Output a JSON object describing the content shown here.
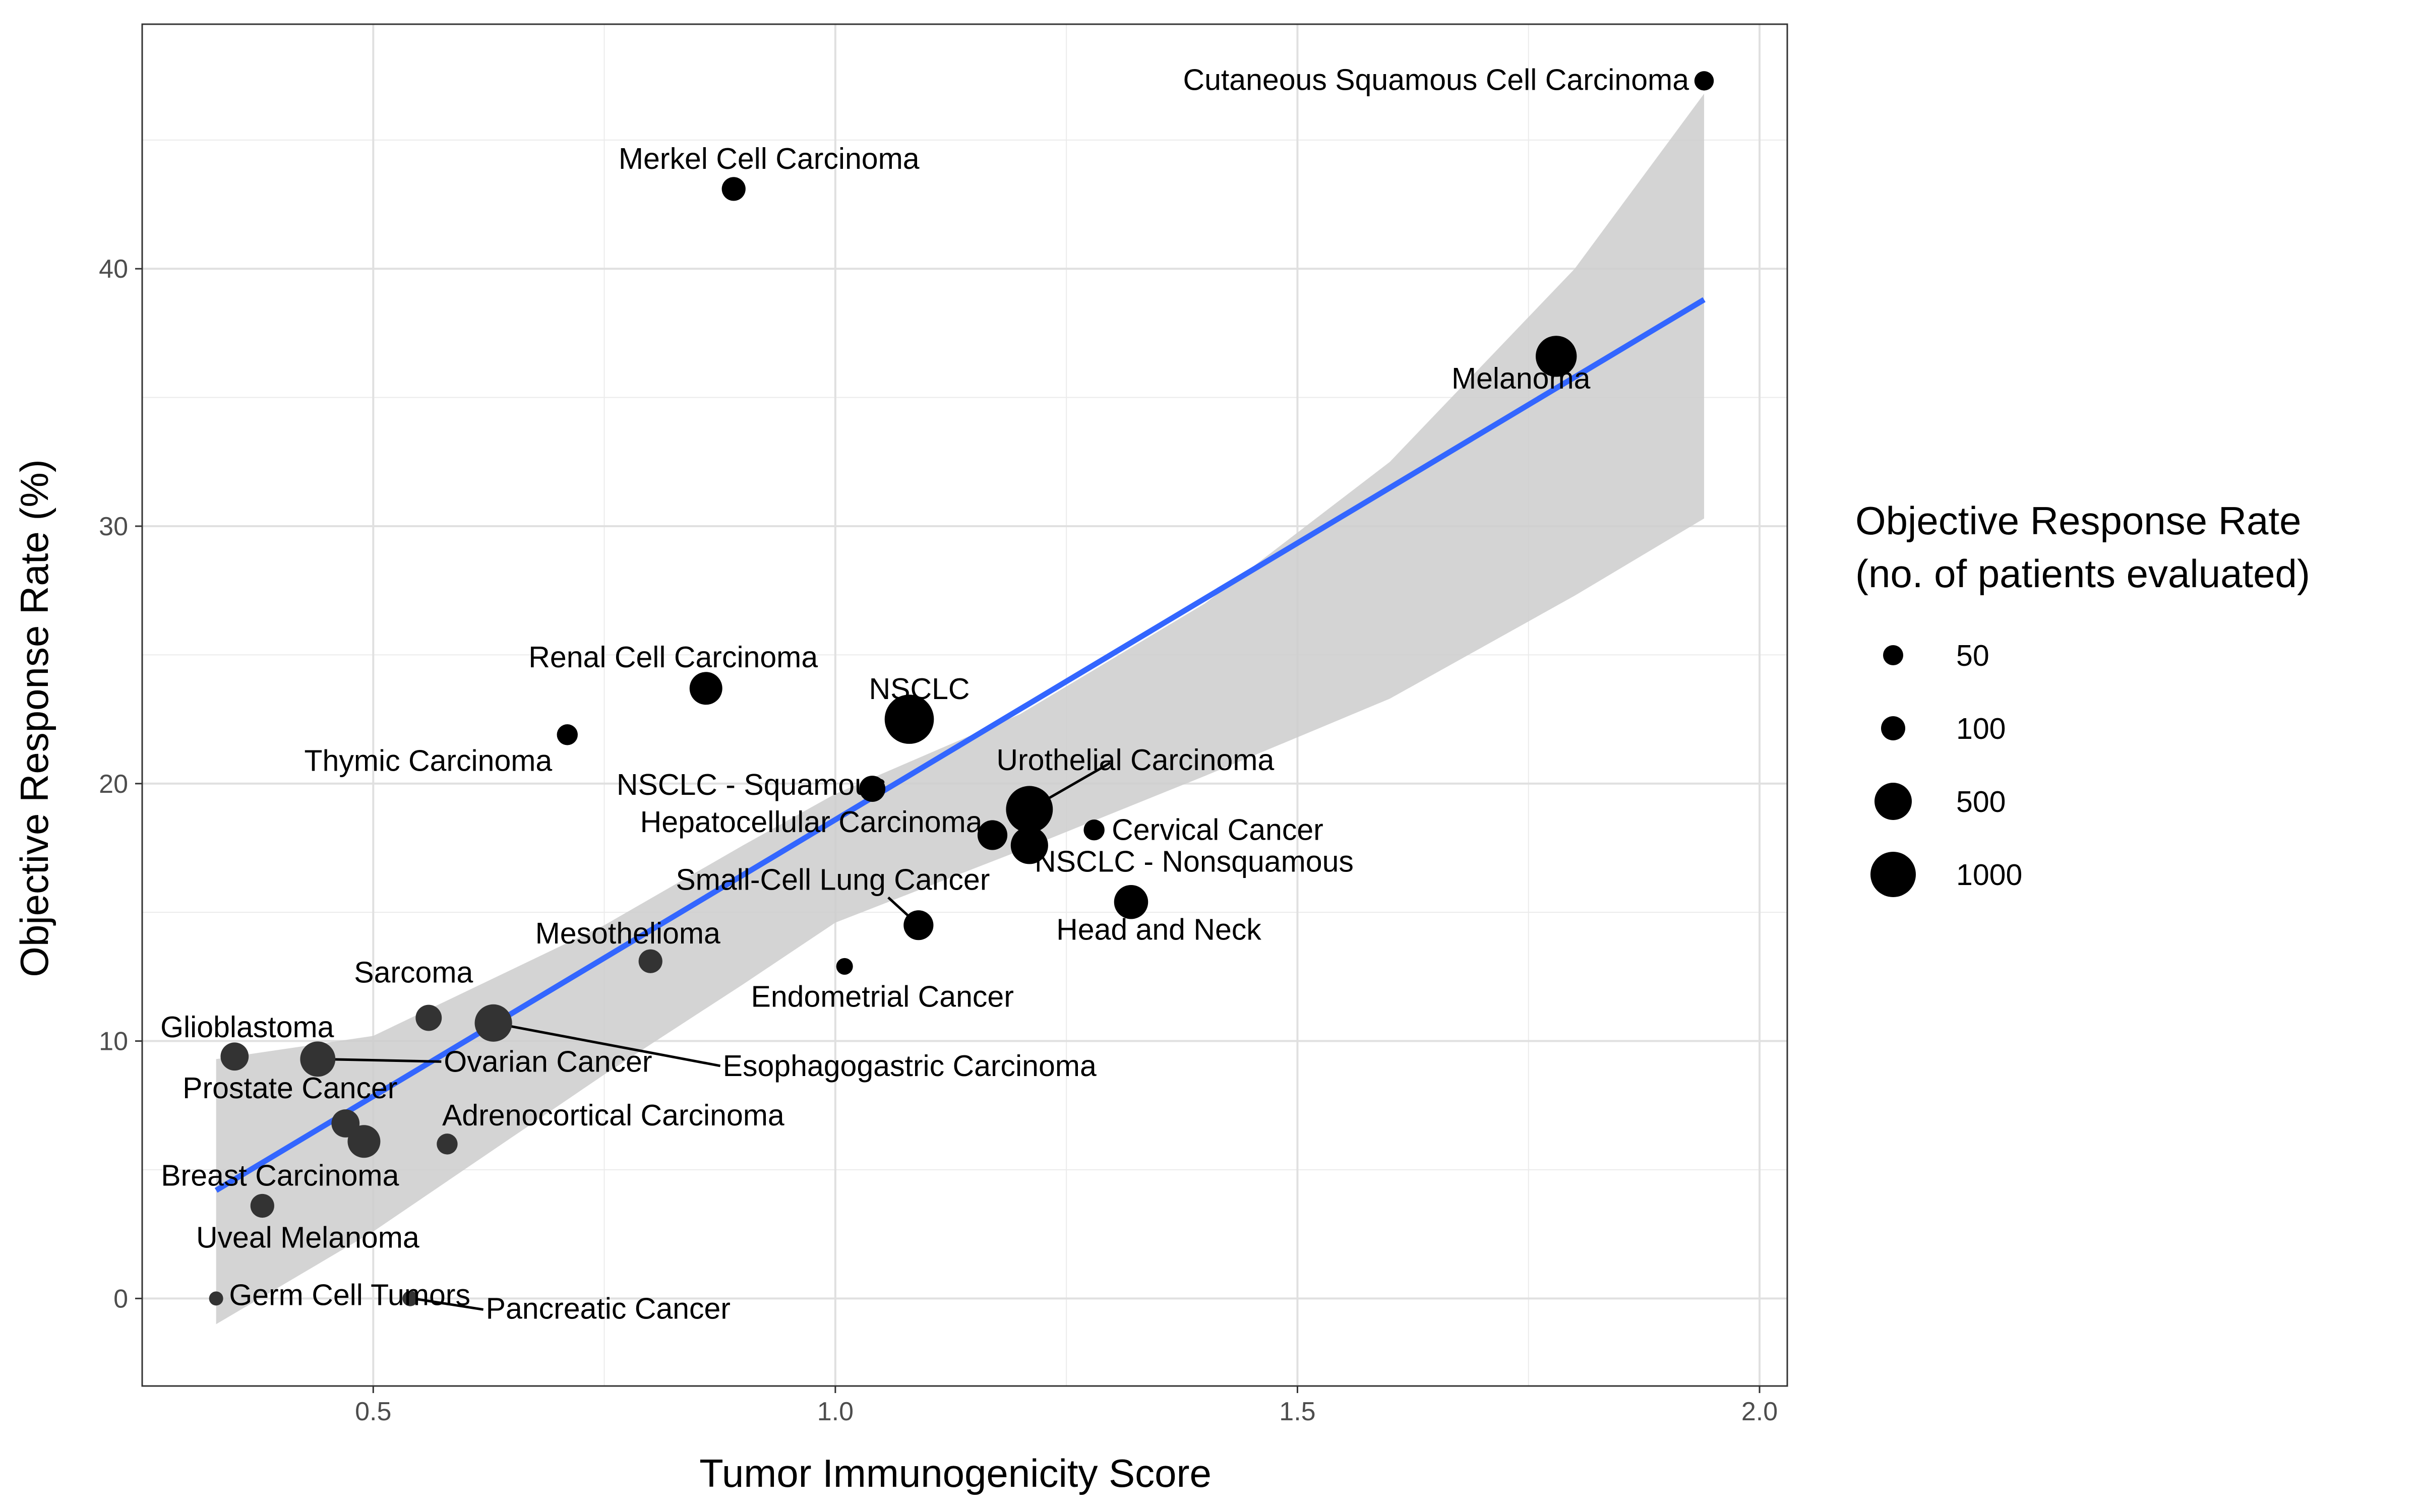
{
  "chart_data": {
    "type": "scatter",
    "xlabel": "Tumor Immunogenicity Score",
    "ylabel": "Objective Response Rate (%)",
    "xlim": [
      0.25,
      2.03
    ],
    "ylim": [
      -3.4,
      49.5
    ],
    "x_ticks": [
      0.5,
      1.0,
      1.5,
      2.0
    ],
    "x_tick_labels": [
      "0.5",
      "1.0",
      "1.5",
      "2.0"
    ],
    "y_ticks": [
      0,
      10,
      20,
      30,
      40
    ],
    "y_tick_labels": [
      "0",
      "10",
      "20",
      "30",
      "40"
    ],
    "grid": true,
    "fit_line": {
      "x": [
        0.33,
        1.94
      ],
      "y": [
        4.2,
        38.8
      ],
      "color": "#3366FF"
    },
    "confidence_band": {
      "x": [
        0.33,
        0.5,
        0.75,
        0.9,
        1.0,
        1.2,
        1.4,
        1.6,
        1.8,
        1.94
      ],
      "lower": [
        -1.0,
        2.6,
        8.7,
        12.2,
        14.6,
        17.4,
        20.3,
        23.3,
        27.3,
        30.3
      ],
      "upper": [
        9.3,
        10.2,
        14.5,
        17.6,
        19.6,
        22.7,
        27.0,
        32.5,
        40.0,
        46.8
      ],
      "color": "#cccccc"
    },
    "point_colors": {
      "dark": "#000000",
      "light": "#333333"
    },
    "points": [
      {
        "label": "Cutaneous Squamous Cell Carcinoma",
        "x": 1.94,
        "y": 47.3,
        "n": 80
      },
      {
        "label": "Merkel Cell Carcinoma",
        "x": 0.89,
        "y": 43.1,
        "n": 150
      },
      {
        "label": "Melanoma",
        "x": 1.78,
        "y": 36.6,
        "n": 800
      },
      {
        "label": "Renal Cell Carcinoma",
        "x": 0.86,
        "y": 23.7,
        "n": 400
      },
      {
        "label": "NSCLC",
        "x": 1.08,
        "y": 22.5,
        "n": 1400
      },
      {
        "label": "Thymic Carcinoma",
        "x": 0.71,
        "y": 21.9,
        "n": 100
      },
      {
        "label": "NSCLC - Squamous",
        "x": 1.04,
        "y": 19.8,
        "n": 200
      },
      {
        "label": "Urothelial Carcinoma",
        "x": 1.21,
        "y": 19.0,
        "n": 1200
      },
      {
        "label": "Hepatocellular Carcinoma",
        "x": 1.17,
        "y": 18.0,
        "n": 300
      },
      {
        "label": "",
        "x": 1.21,
        "y": 17.6,
        "n": 600
      },
      {
        "label": "Cervical Cancer",
        "x": 1.28,
        "y": 18.2,
        "n": 100
      },
      {
        "label": "Small-Cell Lung Cancer",
        "x": 1.09,
        "y": 14.5,
        "n": 300
      },
      {
        "label": "NSCLC - Nonsquamous",
        "x": 1.32,
        "y": 15.4,
        "n": 450
      },
      {
        "label": "Head and Neck",
        "x": 1.32,
        "y": 15.4,
        "n": 0
      },
      {
        "label": "Mesothelioma",
        "x": 0.8,
        "y": 13.1,
        "n": 150
      },
      {
        "label": "Endometrial Cancer",
        "x": 1.01,
        "y": 12.9,
        "n": 50
      },
      {
        "label": "Sarcoma",
        "x": 0.56,
        "y": 10.9,
        "n": 200
      },
      {
        "label": "Esophagogastric Carcinoma",
        "x": 0.63,
        "y": 10.7,
        "n": 600
      },
      {
        "label": "Glioblastoma",
        "x": 0.35,
        "y": 9.4,
        "n": 250
      },
      {
        "label": "Ovarian Cancer",
        "x": 0.44,
        "y": 9.3,
        "n": 500
      },
      {
        "label": "Prostate Cancer",
        "x": 0.47,
        "y": 6.8,
        "n": 250
      },
      {
        "label": "",
        "x": 0.49,
        "y": 6.1,
        "n": 400
      },
      {
        "label": "Adrenocortical Carcinoma",
        "x": 0.58,
        "y": 6.0,
        "n": 100
      },
      {
        "label": "Breast Carcinoma",
        "x": 0.38,
        "y": 3.6,
        "n": 150
      },
      {
        "label": "Uveal Melanoma",
        "x": 0.38,
        "y": 3.6,
        "n": 0
      },
      {
        "label": "Germ Cell Tumors",
        "x": 0.33,
        "y": 0.0,
        "n": 30
      },
      {
        "label": "Pancreatic Cancer",
        "x": 0.54,
        "y": 0.0,
        "n": 40
      }
    ],
    "legend": {
      "title": [
        "Objective Response Rate",
        "(no. of patients evaluated)"
      ],
      "placement": "right",
      "entries": [
        {
          "label": "50",
          "n": 50
        },
        {
          "label": "100",
          "n": 100
        },
        {
          "label": "500",
          "n": 500
        },
        {
          "label": "1000",
          "n": 1000
        }
      ]
    }
  }
}
